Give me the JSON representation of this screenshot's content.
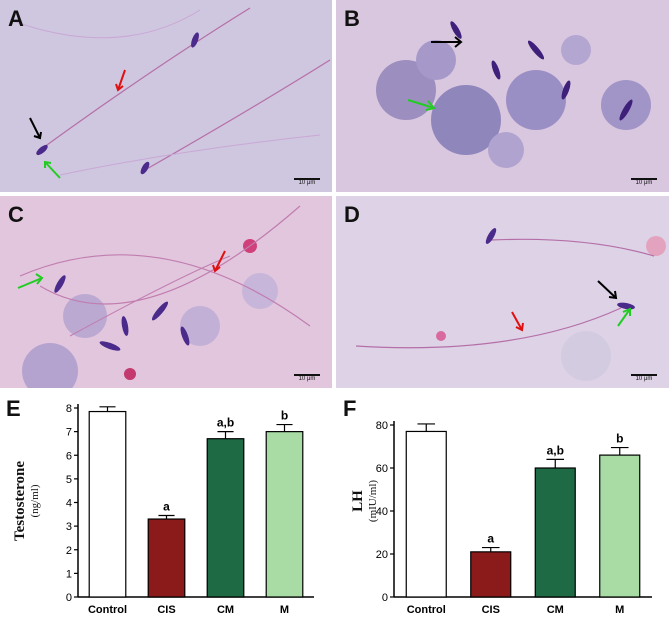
{
  "micrographs": [
    {
      "letter": "A",
      "scale_label": "10 μm"
    },
    {
      "letter": "B",
      "scale_label": "10 μm"
    },
    {
      "letter": "C",
      "scale_label": "10 μm"
    },
    {
      "letter": "D",
      "scale_label": "10 μm"
    }
  ],
  "chart_data": [
    {
      "type": "bar",
      "panel": "E",
      "categories": [
        "Control",
        "CIS",
        "CM",
        "M"
      ],
      "values": [
        7.85,
        3.3,
        6.7,
        7.0
      ],
      "errors": [
        0.2,
        0.15,
        0.3,
        0.3
      ],
      "significance": [
        "",
        "a",
        "a,b",
        "b"
      ],
      "colors": [
        "#ffffff",
        "#8b1a1a",
        "#1d6a45",
        "#a9dca5"
      ],
      "ylabel": "Testosterone",
      "yunit": "(ng/ml)",
      "ylim": [
        0,
        8
      ],
      "yticks": [
        "0",
        "1",
        "2",
        "3",
        "4",
        "5",
        "6",
        "7",
        "8"
      ],
      "grid": false
    },
    {
      "type": "bar",
      "panel": "F",
      "categories": [
        "Control",
        "CIS",
        "CM",
        "M"
      ],
      "values": [
        77,
        21,
        60,
        66
      ],
      "errors": [
        3.5,
        2.0,
        4.0,
        3.5
      ],
      "significance": [
        "",
        "a",
        "a,b",
        "b"
      ],
      "colors": [
        "#ffffff",
        "#8b1a1a",
        "#1d6a45",
        "#a9dca5"
      ],
      "ylabel": "LH",
      "yunit": "(mIU/ml)",
      "ylim": [
        0,
        80
      ],
      "yticks": [
        "0",
        "20",
        "40",
        "60",
        "80"
      ],
      "grid": false
    }
  ]
}
